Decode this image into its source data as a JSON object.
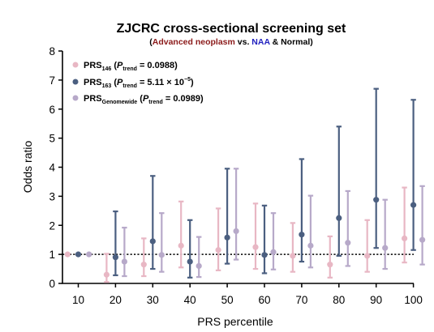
{
  "chart_data": {
    "type": "scatter",
    "title": "ZJCRC cross-sectional screening set",
    "subtitle": {
      "open": "(",
      "part1": "Advanced neoplasm",
      "part1_color": "#8b1a1a",
      "part2": " vs. ",
      "part3": "NAA",
      "part3_color": "#1f1fbf",
      "part4": " & Normal)"
    },
    "xlabel": "PRS percentile",
    "ylabel": "Odds ratio",
    "categories": [
      "10",
      "20",
      "30",
      "40",
      "50",
      "60",
      "70",
      "80",
      "90",
      "100"
    ],
    "ylim": [
      0,
      8
    ],
    "yticks": [
      "0",
      "1",
      "2",
      "3",
      "4",
      "5",
      "6",
      "7",
      "8"
    ],
    "reference_line": 1,
    "legend_position": "top-left",
    "series": [
      {
        "name_main": "PRS",
        "name_sub": "146",
        "p_label": "P",
        "p_sub": "trend",
        "p_value": " = 0.0988)",
        "p_open": " (",
        "color": "#e8b7c4",
        "or": [
          1.0,
          0.3,
          0.65,
          1.3,
          1.15,
          1.25,
          0.95,
          0.65,
          0.95,
          1.55
        ],
        "lower": [
          1.0,
          0.05,
          0.25,
          0.55,
          0.45,
          0.5,
          0.4,
          0.2,
          0.4,
          0.72
        ],
        "upper": [
          1.0,
          1.02,
          1.55,
          2.82,
          2.58,
          2.75,
          2.08,
          1.62,
          2.18,
          3.3
        ]
      },
      {
        "name_main": "PRS",
        "name_sub": "163",
        "p_label": "P",
        "p_sub": "trend",
        "p_value": " = 5.11 × 10",
        "p_exp": "−5",
        "p_close": ")",
        "p_open": " (",
        "color": "#4b5f80",
        "or": [
          1.0,
          0.9,
          1.45,
          0.75,
          1.58,
          0.98,
          1.68,
          2.25,
          2.88,
          2.7
        ],
        "lower": [
          1.0,
          0.28,
          0.5,
          0.2,
          0.68,
          0.35,
          0.75,
          0.95,
          1.22,
          1.15
        ],
        "upper": [
          1.0,
          2.48,
          3.7,
          2.18,
          3.95,
          2.68,
          4.28,
          5.4,
          6.7,
          6.32
        ]
      },
      {
        "name_main": "PRS",
        "name_sub": "Genomewide",
        "p_label": "P",
        "p_sub": "trend",
        "p_value": " = 0.0989)",
        "p_open": "  (",
        "color": "#b7a9c9",
        "or": [
          1.0,
          0.75,
          0.98,
          0.6,
          1.8,
          1.08,
          1.3,
          1.4,
          1.22,
          1.5
        ],
        "lower": [
          1.0,
          0.25,
          0.4,
          0.22,
          0.82,
          0.48,
          0.55,
          0.6,
          0.5,
          0.65
        ],
        "upper": [
          1.0,
          1.92,
          2.42,
          1.6,
          3.95,
          2.42,
          3.02,
          3.18,
          2.88,
          3.35
        ]
      }
    ]
  }
}
